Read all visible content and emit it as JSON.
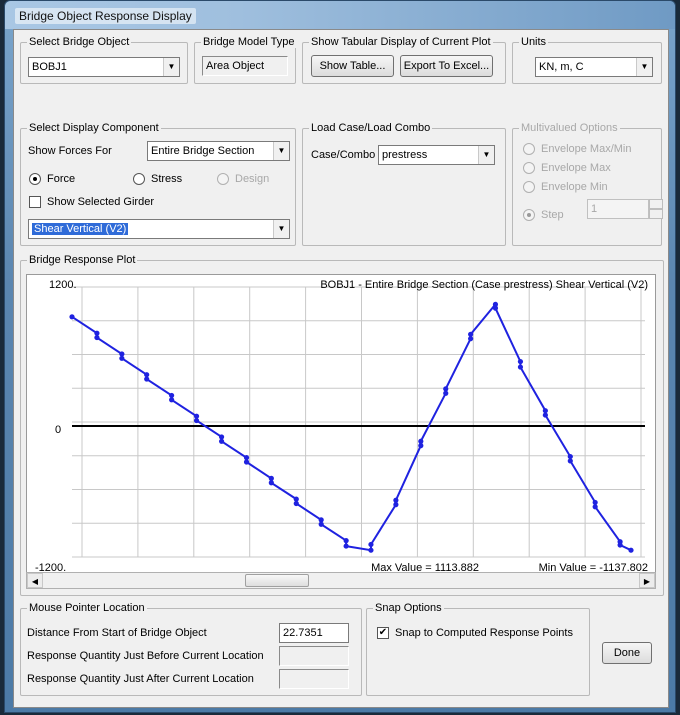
{
  "window": {
    "title": "Bridge Object Response Display"
  },
  "select_bridge_object": {
    "legend": "Select Bridge Object",
    "value": "BOBJ1"
  },
  "bridge_model_type": {
    "legend": "Bridge Model Type",
    "value": "Area Object"
  },
  "tabular": {
    "legend": "Show Tabular Display of Current Plot",
    "show_table_label": "Show Table...",
    "export_label": "Export To Excel..."
  },
  "units": {
    "legend": "Units",
    "value": "KN, m, C"
  },
  "display_component": {
    "legend": "Select Display Component",
    "show_forces_label": "Show Forces For",
    "show_forces_value": "Entire Bridge Section",
    "radio_force": "Force",
    "radio_stress": "Stress",
    "radio_design": "Design",
    "selected_radio": "Force",
    "show_selected_girder": "Show Selected Girder",
    "show_selected_girder_checked": false,
    "component_value": "Shear Vertical  (V2)"
  },
  "load_case": {
    "legend": "Load Case/Load Combo",
    "label": "Case/Combo",
    "value": "prestress"
  },
  "multivalued": {
    "legend": "Multivalued Options",
    "envelope_max_min": "Envelope Max/Min",
    "envelope_max": "Envelope Max",
    "envelope_min": "Envelope Min",
    "step": "Step",
    "step_value": "1",
    "selected": "Step"
  },
  "plot": {
    "legend": "Bridge Response Plot",
    "ymax_label": "1200.",
    "ymin_label": "-1200.",
    "zero_label": "0",
    "title": "BOBJ1 - Entire Bridge Section  (Case prestress)  Shear Vertical  (V2)",
    "max_value": "Max Value = 1113.882",
    "min_value": "Min Value = -1137.802",
    "line_color": "#1f22e0"
  },
  "chart_data": {
    "type": "line",
    "title": "BOBJ1 - Entire Bridge Section  (Case prestress)  Shear Vertical  (V2)",
    "ylim": [
      -1200,
      1200
    ],
    "x_fraction": [
      0.0,
      0.0446,
      0.0446,
      0.0892,
      0.0892,
      0.1336,
      0.1336,
      0.1782,
      0.1782,
      0.2228,
      0.2228,
      0.2676,
      0.2676,
      0.3122,
      0.3122,
      0.3566,
      0.3566,
      0.4012,
      0.4012,
      0.4458,
      0.4458,
      0.4904,
      0.4904,
      0.5348,
      0.5348,
      0.5794,
      0.5794,
      0.624,
      0.624,
      0.6686,
      0.6686,
      0.7131,
      0.7131,
      0.7575,
      0.7575,
      0.8022,
      0.8022,
      0.8468,
      0.8468,
      0.8914,
      0.8914,
      0.9359,
      0.9359,
      0.9805,
      0.9805,
      1.0
    ],
    "y": [
      1000,
      850,
      810,
      660,
      620,
      470,
      430,
      280,
      240,
      90,
      50,
      -100,
      -140,
      -290,
      -330,
      -480,
      -520,
      -670,
      -710,
      -860,
      -900,
      -1050,
      -1100,
      -1137.8,
      -1085,
      -720,
      -680,
      -180,
      -140,
      300,
      340,
      800,
      840,
      1113.9,
      1080,
      590,
      540,
      140,
      100,
      -280,
      -320,
      -700,
      -740,
      -1060,
      -1090,
      -1137.8
    ],
    "series": [
      {
        "name": "",
        "color": "#1f22e0"
      }
    ]
  },
  "mouse_pointer": {
    "legend": "Mouse Pointer Location",
    "distance_label": "Distance From Start of Bridge Object",
    "distance_value": "22.7351",
    "before_label": "Response Quantity Just Before Current Location",
    "after_label": "Response Quantity Just After Current Location",
    "before_value": "",
    "after_value": ""
  },
  "snap": {
    "legend": "Snap Options",
    "label": "Snap to Computed Response Points",
    "checked": true
  },
  "done_label": "Done"
}
